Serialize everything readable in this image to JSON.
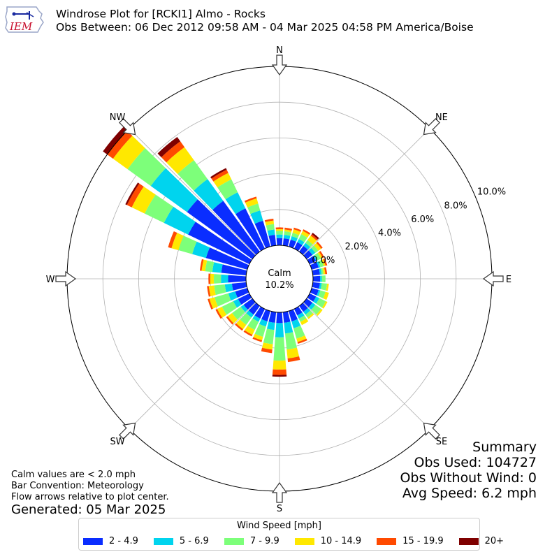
{
  "header": {
    "title_line1": "Windrose Plot for [RCKI1] Almo - Rocks",
    "title_line2": "Obs Between: 06 Dec 2012 09:58 AM - 04 Mar 2025 04:58 PM America/Boise",
    "logo_text": "IEM"
  },
  "summary": {
    "heading": "Summary",
    "obs_used": "Obs Used: 104727",
    "obs_without_wind": "Obs Without Wind: 0",
    "avg_speed": "Avg Speed: 6.2 mph"
  },
  "notes": {
    "calm_note": "Calm values are < 2.0 mph",
    "bar_convention": "Bar Convention: Meteorology",
    "flow_arrows": "Flow arrows relative to plot center.",
    "generated": "Generated: 05 Mar 2025"
  },
  "chart_data": {
    "type": "windrose",
    "calm_label": "Calm",
    "calm_value_text": "10.2%",
    "calm_percent": 10.2,
    "radial_max": 10.0,
    "radial_ticks": [
      0,
      2,
      4,
      6,
      8,
      10
    ],
    "radial_tick_labels": [
      "0.0%",
      "2.0%",
      "4.0%",
      "6.0%",
      "8.0%",
      "10.0%"
    ],
    "grid": true,
    "compass_labels": [
      {
        "label": "N",
        "angle": 0
      },
      {
        "label": "NE",
        "angle": 45
      },
      {
        "label": "E",
        "angle": 90
      },
      {
        "label": "SE",
        "angle": 135
      },
      {
        "label": "S",
        "angle": 180
      },
      {
        "label": "SW",
        "angle": 225
      },
      {
        "label": "W",
        "angle": 270
      },
      {
        "label": "NW",
        "angle": 315
      }
    ],
    "legend_title": "Wind Speed [mph]",
    "legend_placement": "bottom",
    "bins": [
      {
        "label": "2 - 4.9",
        "color": "#0a2dff"
      },
      {
        "label": "5 - 6.9",
        "color": "#00d4ee"
      },
      {
        "label": "7 - 9.9",
        "color": "#7dff7a"
      },
      {
        "label": "10 - 14.9",
        "color": "#ffe800"
      },
      {
        "label": "15 - 19.9",
        "color": "#ff4a00"
      },
      {
        "label": "20+",
        "color": "#7f0000"
      }
    ],
    "direction_angles": [
      0,
      10,
      20,
      30,
      40,
      50,
      60,
      70,
      80,
      90,
      100,
      110,
      120,
      130,
      140,
      150,
      160,
      170,
      180,
      190,
      200,
      210,
      220,
      230,
      240,
      250,
      260,
      270,
      280,
      290,
      300,
      310,
      320,
      330,
      340,
      350
    ],
    "sector_cumulative": [
      [
        0.4,
        0.6,
        0.8,
        0.9,
        1.0,
        1.0
      ],
      [
        0.4,
        0.6,
        0.8,
        0.9,
        1.0,
        1.0
      ],
      [
        0.4,
        0.6,
        0.8,
        1.0,
        1.1,
        1.1
      ],
      [
        0.4,
        0.6,
        0.9,
        1.1,
        1.2,
        1.2
      ],
      [
        0.4,
        0.6,
        0.8,
        1.1,
        1.2,
        1.3
      ],
      [
        0.4,
        0.6,
        0.8,
        1.0,
        1.1,
        1.1
      ],
      [
        0.4,
        0.5,
        0.7,
        0.8,
        0.9,
        0.9
      ],
      [
        0.4,
        0.5,
        0.7,
        0.8,
        0.9,
        0.9
      ],
      [
        0.4,
        0.5,
        0.6,
        0.7,
        0.8,
        0.8
      ],
      [
        0.4,
        0.5,
        0.7,
        0.7,
        0.7,
        0.7
      ],
      [
        0.4,
        0.5,
        0.8,
        0.9,
        0.9,
        0.9
      ],
      [
        0.4,
        0.5,
        0.8,
        1.0,
        1.0,
        1.0
      ],
      [
        0.4,
        0.6,
        1.0,
        1.1,
        1.1,
        1.1
      ],
      [
        0.4,
        0.6,
        1.0,
        1.1,
        1.1,
        1.1
      ],
      [
        0.4,
        0.6,
        0.8,
        0.9,
        0.9,
        0.9
      ],
      [
        0.4,
        0.6,
        0.8,
        1.0,
        1.0,
        1.0
      ],
      [
        0.6,
        1.0,
        1.6,
        1.8,
        1.9,
        1.9
      ],
      [
        0.6,
        1.2,
        2.1,
        2.6,
        2.8,
        2.8
      ],
      [
        0.6,
        1.4,
        2.7,
        3.2,
        3.5,
        3.6
      ],
      [
        0.6,
        1.0,
        1.8,
        2.1,
        2.3,
        2.3
      ],
      [
        0.6,
        0.9,
        1.5,
        1.7,
        1.8,
        1.8
      ],
      [
        0.6,
        0.8,
        1.3,
        1.6,
        1.7,
        1.7
      ],
      [
        0.6,
        0.8,
        1.3,
        1.6,
        1.7,
        1.7
      ],
      [
        0.6,
        0.8,
        1.4,
        1.7,
        1.8,
        1.8
      ],
      [
        0.7,
        1.0,
        1.7,
        2.0,
        2.1,
        2.1
      ],
      [
        0.7,
        1.1,
        1.9,
        2.2,
        2.3,
        2.3
      ],
      [
        0.8,
        1.2,
        1.8,
        2.1,
        2.2,
        2.2
      ],
      [
        1.0,
        1.4,
        1.8,
        2.0,
        2.1,
        2.1
      ],
      [
        1.4,
        1.9,
        2.3,
        2.5,
        2.6,
        2.6
      ],
      [
        2.4,
        3.2,
        4.0,
        4.4,
        4.6,
        4.6
      ],
      [
        3.8,
        5.3,
        6.5,
        7.3,
        7.6,
        7.7
      ],
      [
        4.5,
        7.0,
        8.6,
        9.6,
        10.0,
        10.3
      ],
      [
        3.5,
        5.0,
        6.3,
        7.2,
        7.6,
        7.9
      ],
      [
        2.5,
        3.5,
        4.3,
        4.7,
        4.9,
        5.0
      ],
      [
        1.5,
        2.1,
        2.5,
        2.8,
        2.9,
        2.9
      ],
      [
        0.6,
        0.9,
        1.2,
        1.4,
        1.5,
        1.5
      ]
    ]
  }
}
